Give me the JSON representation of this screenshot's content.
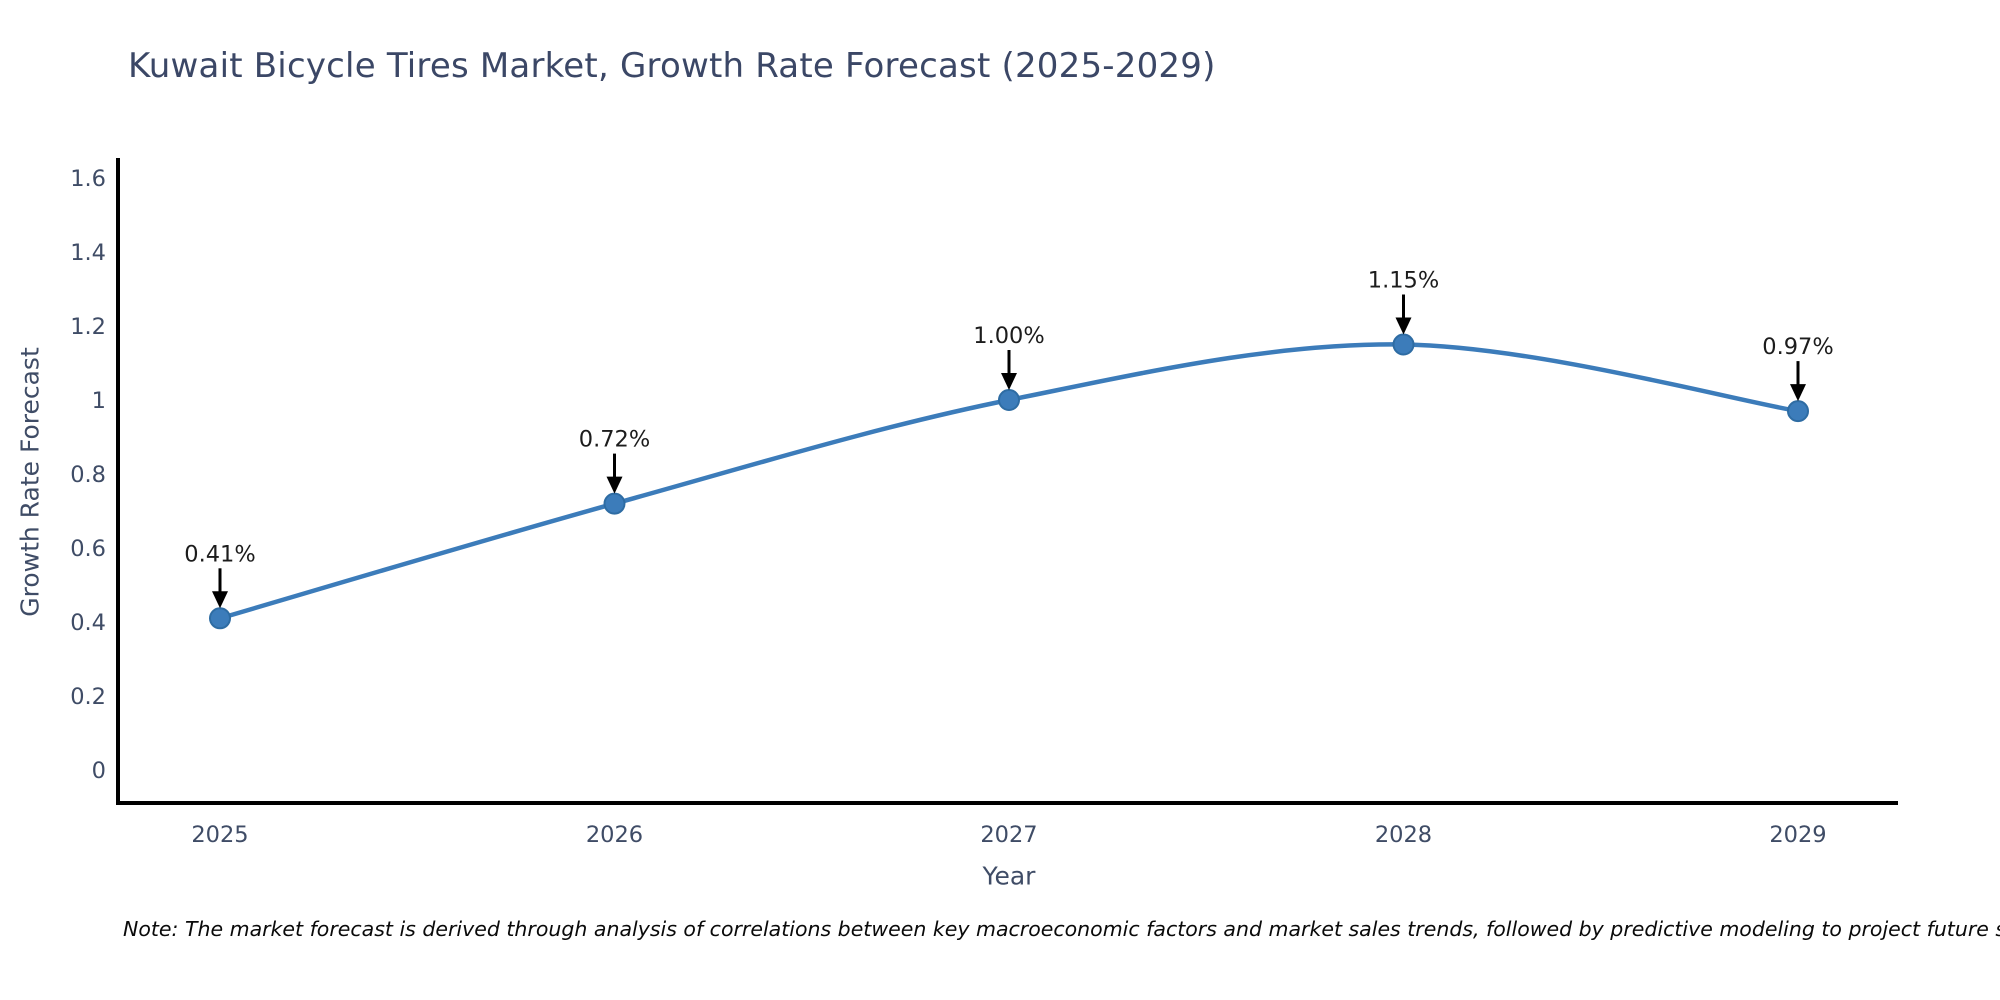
{
  "page": {
    "background": "#ffffff"
  },
  "chart_data": {
    "type": "line",
    "title": "Kuwait Bicycle Tires Market, Growth Rate Forecast (2025-2029)",
    "xlabel": "Year",
    "ylabel": "Growth Rate Forecast",
    "x": [
      2025,
      2026,
      2027,
      2028,
      2029
    ],
    "y": [
      0.41,
      0.72,
      1.0,
      1.15,
      0.97
    ],
    "point_labels": [
      "0.41%",
      "0.72%",
      "1.00%",
      "1.15%",
      "0.97%"
    ],
    "x_tick_labels": [
      "2025",
      "2026",
      "2027",
      "2028",
      "2029"
    ],
    "y_ticks": [
      0,
      0.2,
      0.4,
      0.6,
      0.8,
      1.0,
      1.2,
      1.4,
      1.6
    ],
    "y_tick_labels": [
      "0",
      "0.2",
      "0.4",
      "0.6",
      "0.8",
      "1",
      "1.2",
      "1.4",
      "1.6"
    ],
    "ylim": [
      0,
      1.6
    ],
    "grid": false,
    "legend_position": "none",
    "line_color": "#3c7cba",
    "marker_color": "#3c7cba",
    "marker_edge_color": "#2e6ca3",
    "axis_color": "#000000",
    "annotation_arrow_color": "#000000"
  },
  "note": {
    "text": "Note: The market forecast is derived through analysis of correlations between key macroeconomic factors and market sales trends, followed by predictive modeling to project future sales"
  }
}
